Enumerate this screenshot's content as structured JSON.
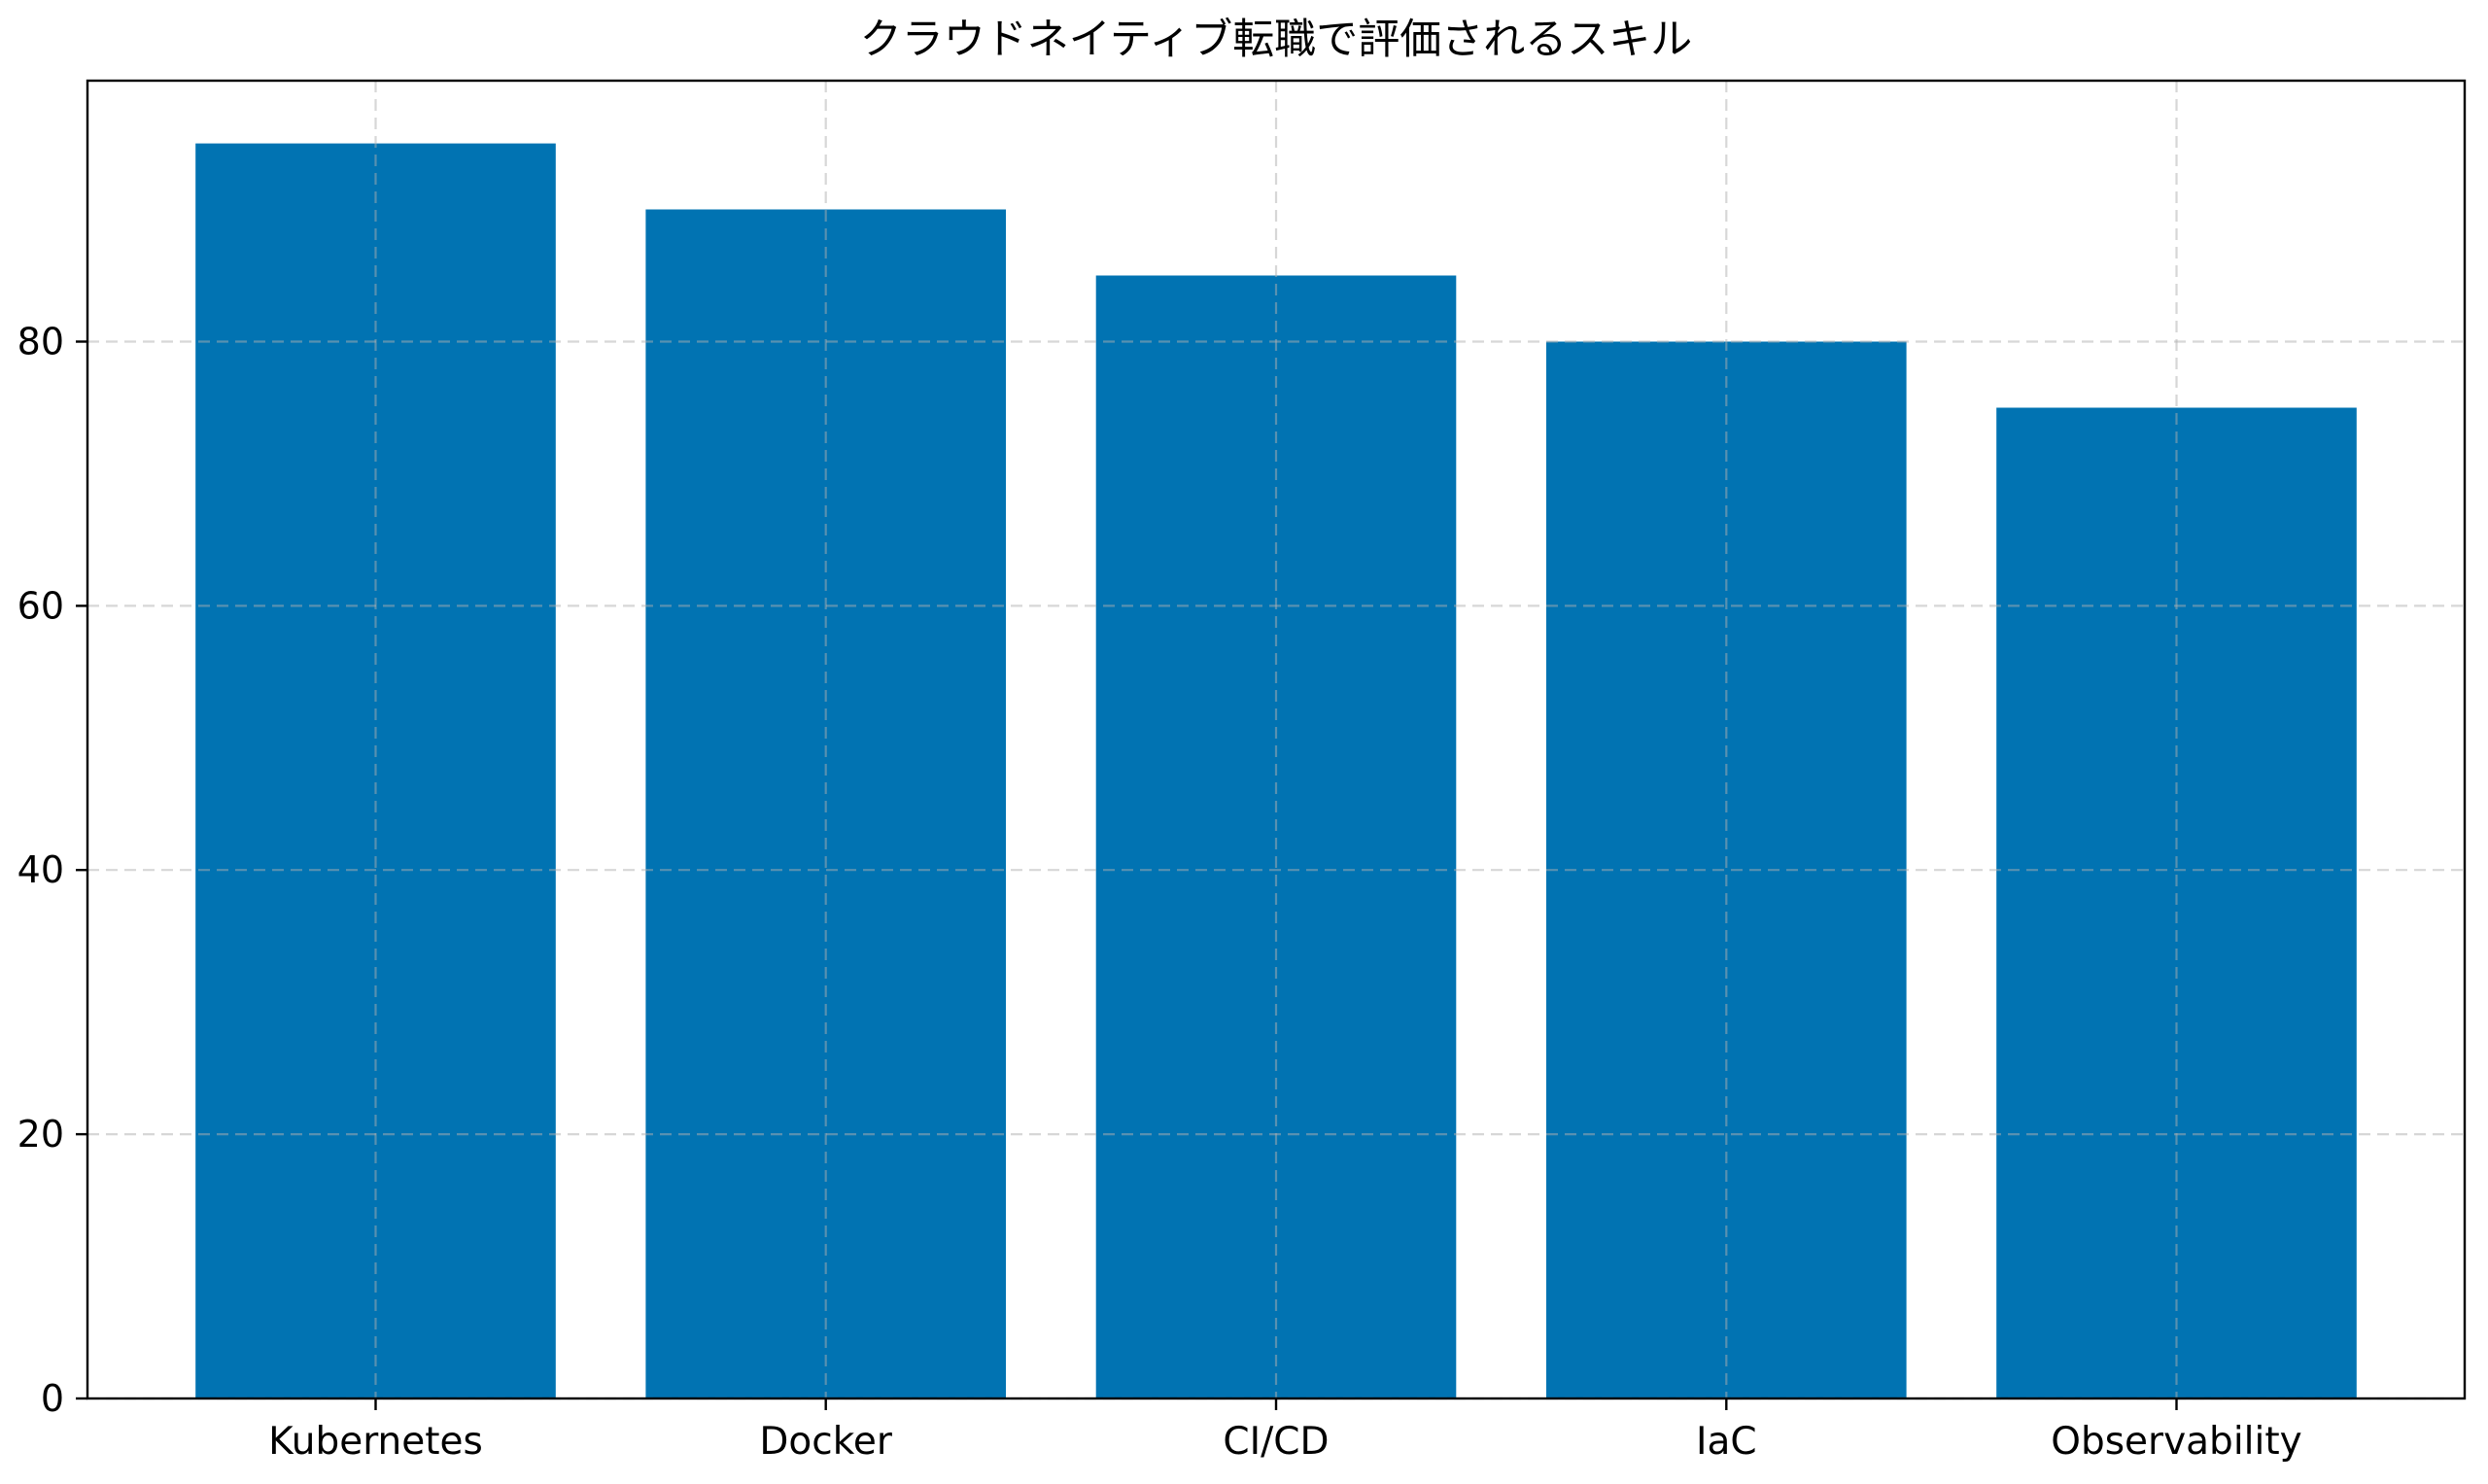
{
  "chart_data": {
    "type": "bar",
    "title": "クラウドネイティブ転職で評価されるスキル",
    "categories": [
      "Kubernetes",
      "Docker",
      "CI/CD",
      "IaC",
      "Observability"
    ],
    "values": [
      95,
      90,
      85,
      80,
      75
    ],
    "xlabel": "",
    "ylabel": "",
    "ylim": [
      0,
      99.75
    ],
    "yticks": [
      0,
      20,
      40,
      60,
      80
    ],
    "ytick_labels": [
      "0",
      "20",
      "40",
      "60",
      "80"
    ],
    "grid": "on",
    "grid_style": "dashed",
    "grid_above_bars": true,
    "legend": "none",
    "colors": {
      "bar": "#0173b2",
      "grid": "#b0b0b0",
      "axis": "#000000",
      "text": "#000000",
      "background": "#ffffff"
    }
  }
}
